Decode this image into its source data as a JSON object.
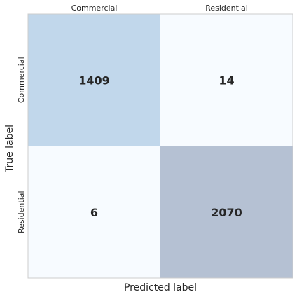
{
  "chart_data": {
    "type": "heatmap",
    "title": "",
    "xlabel": "Predicted label",
    "ylabel": "True label",
    "x_categories": [
      "Commercial",
      "Residential"
    ],
    "y_categories": [
      "Commercial",
      "Residential"
    ],
    "values": [
      [
        1409,
        14
      ],
      [
        6,
        2070
      ]
    ],
    "colors": {
      "cells": [
        [
          "#c1d7eb",
          "#f7fbff"
        ],
        [
          "#f7fbff",
          "#b5c1d3"
        ]
      ],
      "value_text": "#262626",
      "axis_text": "#262626",
      "frame": "#cccccc",
      "background": "#ffffff"
    },
    "grid": false,
    "legend": "none",
    "x_tick_position": "top"
  }
}
